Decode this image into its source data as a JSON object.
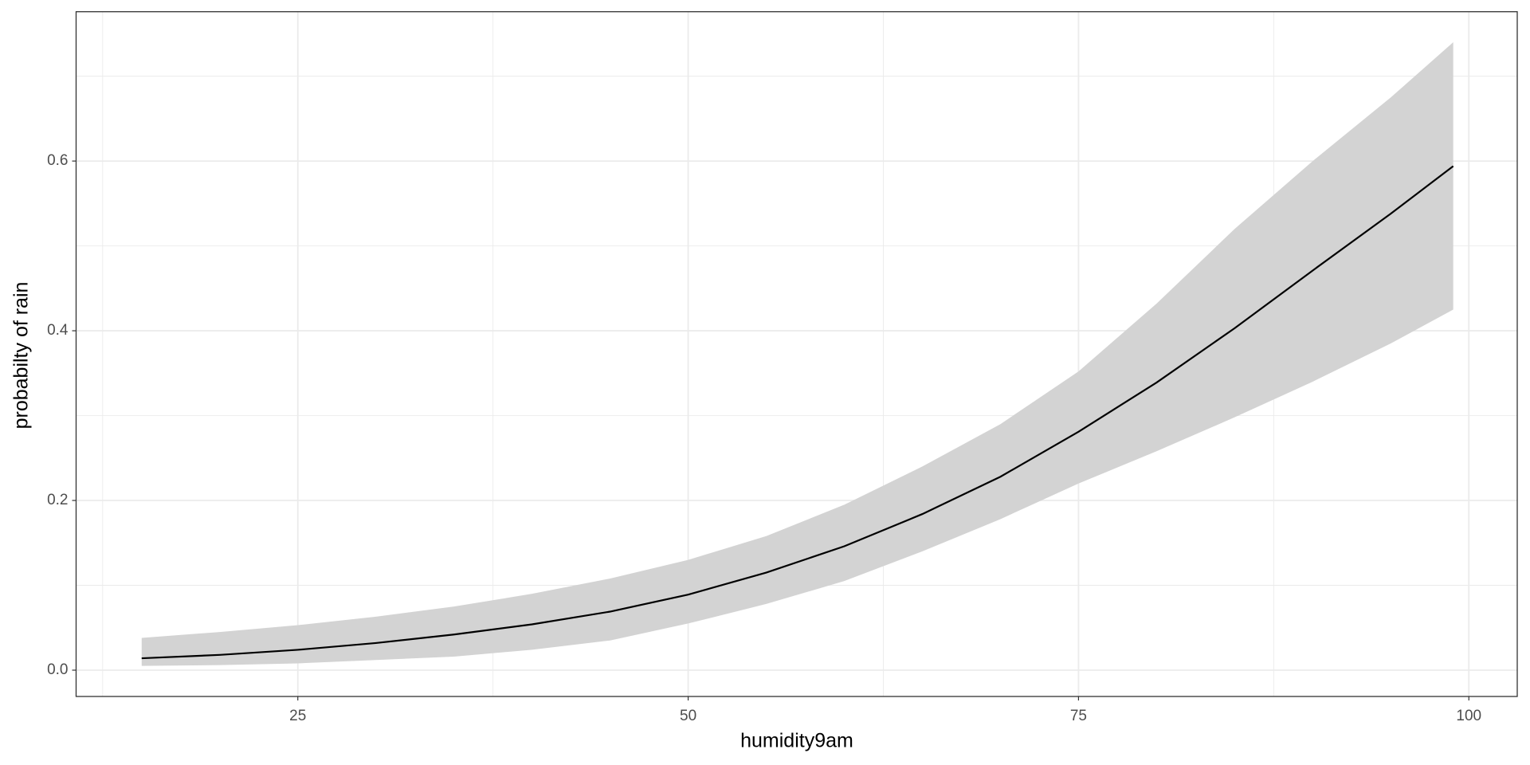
{
  "chart_data": {
    "type": "line",
    "x_label": "humidity9am",
    "y_label": "probabilty of rain",
    "x": [
      15,
      20,
      25,
      30,
      35,
      40,
      45,
      50,
      55,
      60,
      65,
      70,
      75,
      80,
      85,
      90,
      95,
      99
    ],
    "values": [
      0.014,
      0.018,
      0.024,
      0.032,
      0.042,
      0.054,
      0.069,
      0.089,
      0.115,
      0.146,
      0.184,
      0.228,
      0.281,
      0.339,
      0.403,
      0.471,
      0.538,
      0.594
    ],
    "upper": [
      0.038,
      0.045,
      0.053,
      0.063,
      0.075,
      0.09,
      0.108,
      0.13,
      0.158,
      0.195,
      0.24,
      0.29,
      0.352,
      0.432,
      0.52,
      0.6,
      0.675,
      0.74
    ],
    "lower": [
      0.005,
      0.006,
      0.008,
      0.012,
      0.016,
      0.024,
      0.035,
      0.055,
      0.078,
      0.105,
      0.14,
      0.178,
      0.22,
      0.258,
      0.298,
      0.34,
      0.385,
      0.425
    ],
    "color": "#000000",
    "band_color": "#d3d3d3",
    "xlim": [
      10.8,
      103.1
    ],
    "ylim": [
      -0.031,
      0.776
    ],
    "xticks": [
      25,
      50,
      75,
      100
    ],
    "yticks": [
      {
        "value": 0,
        "label": "0.0"
      },
      0.2,
      0.4,
      0.6
    ],
    "xminor": [
      12.5,
      37.5,
      62.5,
      87.5
    ],
    "yminor": [
      0.1,
      0.3,
      0.5,
      0.7
    ],
    "grid": true
  }
}
